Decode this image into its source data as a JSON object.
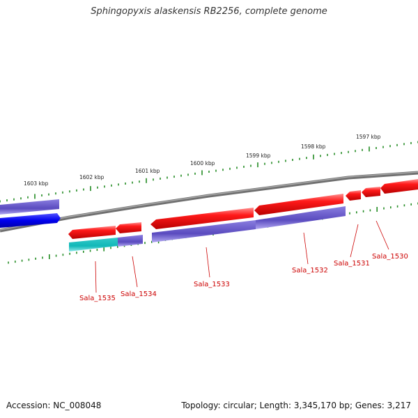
{
  "title": "Sphingopyxis alaskensis RB2256, complete genome",
  "accession": "Accession: NC_008048",
  "stats": "Topology: circular; Length: 3,345,170 bp; Genes: 3,217",
  "scale_labels": [
    "1603 kbp",
    "1602 kbp",
    "1601 kbp",
    "1600 kbp",
    "1599 kbp",
    "1598 kbp",
    "1597 kbp"
  ],
  "genes": [
    "Sala_1535",
    "Sala_1534",
    "Sala_1533",
    "Sala_1532",
    "Sala_1531",
    "Sala_1530"
  ],
  "colors": {
    "backbone": "#808080",
    "forward_cds": "#ff0000",
    "reverse_cds": "#6655cc",
    "blue_feature": "#0000ee",
    "cyan_feature": "#22cccc",
    "scale_ticks": "#228b22",
    "gene_label": "#cc0000"
  }
}
